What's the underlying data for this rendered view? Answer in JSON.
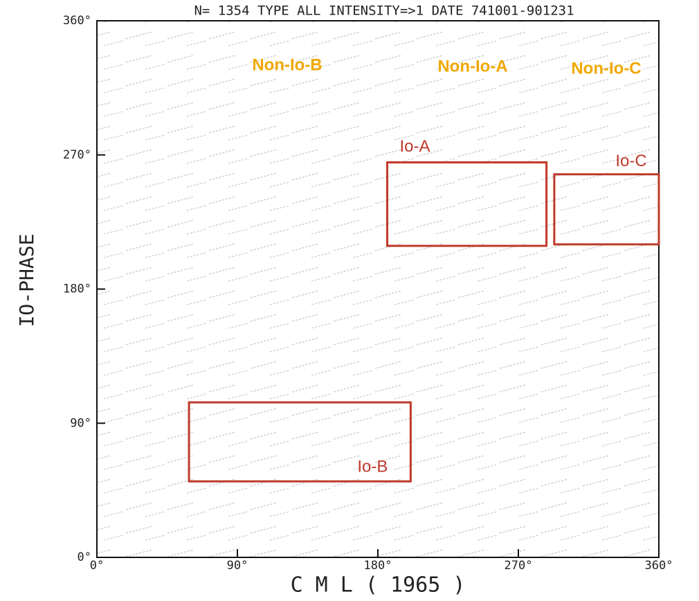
{
  "chart_data": {
    "type": "region",
    "title": "N= 1354 TYPE ALL INTENSITY=>1 DATE 741001-901231",
    "x_label": "C M L ( 1965 )",
    "y_label": "IO-PHASE",
    "xlim": [
      0,
      360
    ],
    "ylim": [
      0,
      360
    ],
    "xticks": [
      {
        "value": 0,
        "label": "0°"
      },
      {
        "value": 90,
        "label": "90°"
      },
      {
        "value": 180,
        "label": "180°"
      },
      {
        "value": 270,
        "label": "270°"
      },
      {
        "value": 360,
        "label": "360°"
      }
    ],
    "yticks": [
      {
        "value": 0,
        "label": "0°"
      },
      {
        "value": 90,
        "label": "90°"
      },
      {
        "value": 180,
        "label": "180°"
      },
      {
        "value": 270,
        "label": "270°"
      },
      {
        "value": 360,
        "label": "360°"
      }
    ],
    "regions": [
      {
        "name": "Io-A",
        "color": "#c0392b",
        "x": [
          186,
          288
        ],
        "y": [
          209,
          265
        ]
      },
      {
        "name": "Io-C",
        "color": "#c0392b",
        "x": [
          293,
          360
        ],
        "y": [
          210,
          257
        ]
      },
      {
        "name": "Io-B",
        "color": "#c0392b",
        "x": [
          59,
          201
        ],
        "y": [
          51,
          104
        ]
      }
    ],
    "annotations": [
      "Non-Io-B",
      "Non-Io-A",
      "Non-Io-C"
    ],
    "annotation_color": "#f0a800"
  }
}
